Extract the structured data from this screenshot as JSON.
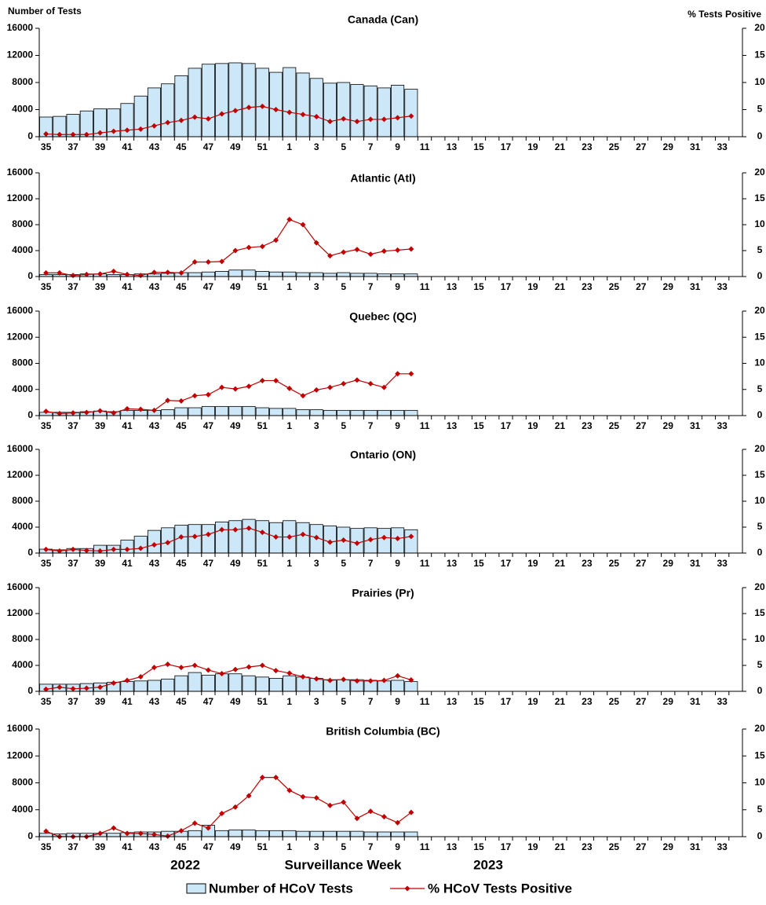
{
  "chart_data": [
    {
      "type": "bar-line",
      "title": "Canada (Can)",
      "y_label": "Number of Tests",
      "y2_label": "% Tests Positive",
      "categories": [
        35,
        null,
        37,
        null,
        39,
        null,
        41,
        null,
        43,
        null,
        45,
        null,
        47,
        null,
        49,
        null,
        51,
        null,
        1,
        null,
        3,
        null,
        5,
        null,
        7,
        null,
        9,
        null,
        11,
        null,
        13,
        null,
        15,
        null,
        17,
        null,
        19,
        null,
        21,
        null,
        23,
        null,
        25,
        null,
        27,
        null,
        29,
        null,
        31,
        null,
        33,
        null
      ],
      "ylim": [
        0,
        16000
      ],
      "yticks": [
        0,
        4000,
        8000,
        12000,
        16000
      ],
      "y2lim": [
        0,
        20
      ],
      "y2ticks": [
        0,
        5,
        10,
        15,
        20
      ],
      "series": [
        {
          "name": "Number of HCoV Tests",
          "color": "#cce8f8",
          "values": [
            2900,
            3000,
            3300,
            3800,
            4100,
            4100,
            4900,
            6000,
            7200,
            7800,
            9000,
            10100,
            10700,
            10800,
            10900,
            10800,
            10100,
            9500,
            10200,
            9400,
            8600,
            7900,
            8000,
            7700,
            7500,
            7200,
            7600,
            7000,
            null,
            null,
            null,
            null,
            null,
            null,
            null,
            null,
            null,
            null,
            null,
            null,
            null,
            null,
            null,
            null,
            null,
            null,
            null,
            null,
            null,
            null,
            null,
            null
          ]
        },
        {
          "name": "% HCoV Tests Positive",
          "color": "#c00000",
          "axis": "y2",
          "values": [
            0.5,
            0.4,
            0.4,
            0.4,
            0.7,
            1.0,
            1.2,
            1.4,
            2.0,
            2.6,
            3.0,
            3.6,
            3.3,
            4.2,
            4.8,
            5.4,
            5.6,
            5.0,
            4.5,
            4.1,
            3.7,
            2.8,
            3.3,
            2.8,
            3.2,
            3.2,
            3.5,
            3.8,
            null,
            null,
            null,
            null,
            null,
            null,
            null,
            null,
            null,
            null,
            null,
            null,
            null,
            null,
            null,
            null,
            null,
            null,
            null,
            null,
            null,
            null,
            null,
            null
          ]
        }
      ]
    },
    {
      "type": "bar-line",
      "title": "Atlantic (Atl)",
      "categories": [
        35,
        null,
        37,
        null,
        39,
        null,
        41,
        null,
        43,
        null,
        45,
        null,
        47,
        null,
        49,
        null,
        51,
        null,
        1,
        null,
        3,
        null,
        5,
        null,
        7,
        null,
        9,
        null,
        11,
        null,
        13,
        null,
        15,
        null,
        17,
        null,
        19,
        null,
        21,
        null,
        23,
        null,
        25,
        null,
        27,
        null,
        29,
        null,
        31,
        null,
        33,
        null
      ],
      "ylim": [
        0,
        16000
      ],
      "yticks": [
        0,
        4000,
        8000,
        12000,
        16000
      ],
      "y2lim": [
        0,
        20
      ],
      "y2ticks": [
        0,
        5,
        10,
        15,
        20
      ],
      "series": [
        {
          "color": "#cce8f8",
          "values": [
            300,
            300,
            300,
            400,
            400,
            300,
            300,
            400,
            400,
            500,
            600,
            600,
            700,
            800,
            1000,
            1000,
            800,
            700,
            700,
            600,
            600,
            500,
            600,
            500,
            500,
            400,
            400,
            400,
            null,
            null,
            null,
            null,
            null,
            null,
            null,
            null,
            null,
            null,
            null,
            null,
            null,
            null,
            null,
            null,
            null,
            null,
            null,
            null,
            null,
            null,
            null,
            null
          ]
        },
        {
          "color": "#c00000",
          "axis": "y2",
          "values": [
            0.7,
            0.7,
            0.2,
            0.4,
            0.5,
            1.0,
            0.4,
            0.2,
            0.8,
            0.8,
            0.7,
            2.8,
            2.8,
            2.9,
            5.0,
            5.6,
            5.8,
            7.0,
            11.0,
            10.0,
            6.5,
            4.0,
            4.7,
            5.2,
            4.3,
            4.9,
            5.1,
            5.3,
            null,
            null,
            null,
            null,
            null,
            null,
            null,
            null,
            null,
            null,
            null,
            null,
            null,
            null,
            null,
            null,
            null,
            null,
            null,
            null,
            null,
            null,
            null,
            null
          ]
        }
      ]
    },
    {
      "type": "bar-line",
      "title": "Quebec (QC)",
      "categories": [
        35,
        null,
        37,
        null,
        39,
        null,
        41,
        null,
        43,
        null,
        45,
        null,
        47,
        null,
        49,
        null,
        51,
        null,
        1,
        null,
        3,
        null,
        5,
        null,
        7,
        null,
        9,
        null,
        11,
        null,
        13,
        null,
        15,
        null,
        17,
        null,
        19,
        null,
        21,
        null,
        23,
        null,
        25,
        null,
        27,
        null,
        29,
        null,
        31,
        null,
        33,
        null
      ],
      "ylim": [
        0,
        16000
      ],
      "yticks": [
        0,
        4000,
        8000,
        12000,
        16000
      ],
      "y2lim": [
        0,
        20
      ],
      "y2ticks": [
        0,
        5,
        10,
        15,
        20
      ],
      "series": [
        {
          "color": "#cce8f8",
          "values": [
            500,
            500,
            500,
            600,
            700,
            600,
            800,
            800,
            800,
            900,
            1200,
            1200,
            1400,
            1400,
            1400,
            1400,
            1200,
            1100,
            1100,
            900,
            900,
            800,
            800,
            800,
            800,
            800,
            800,
            800,
            null,
            null,
            null,
            null,
            null,
            null,
            null,
            null,
            null,
            null,
            null,
            null,
            null,
            null,
            null,
            null,
            null,
            null,
            null,
            null,
            null,
            null,
            null,
            null
          ]
        },
        {
          "color": "#c00000",
          "axis": "y2",
          "values": [
            0.8,
            0.4,
            0.5,
            0.6,
            0.9,
            0.5,
            1.3,
            1.2,
            1.0,
            2.9,
            2.8,
            3.8,
            4.0,
            5.4,
            5.1,
            5.6,
            6.7,
            6.7,
            5.2,
            3.8,
            4.9,
            5.4,
            6.1,
            6.8,
            6.1,
            5.4,
            8.0,
            8.0,
            null,
            null,
            null,
            null,
            null,
            null,
            null,
            null,
            null,
            null,
            null,
            null,
            null,
            null,
            null,
            null,
            null,
            null,
            null,
            null,
            null,
            null,
            null,
            null
          ]
        }
      ]
    },
    {
      "type": "bar-line",
      "title": "Ontario (ON)",
      "categories": [
        35,
        null,
        37,
        null,
        39,
        null,
        41,
        null,
        43,
        null,
        45,
        null,
        47,
        null,
        49,
        null,
        51,
        null,
        1,
        null,
        3,
        null,
        5,
        null,
        7,
        null,
        9,
        null,
        11,
        null,
        13,
        null,
        15,
        null,
        17,
        null,
        19,
        null,
        21,
        null,
        23,
        null,
        25,
        null,
        27,
        null,
        29,
        null,
        31,
        null,
        33,
        null
      ],
      "ylim": [
        0,
        16000
      ],
      "yticks": [
        0,
        4000,
        8000,
        12000,
        16000
      ],
      "y2lim": [
        0,
        20
      ],
      "y2ticks": [
        0,
        5,
        10,
        15,
        20
      ],
      "series": [
        {
          "color": "#cce8f8",
          "values": [
            600,
            500,
            700,
            700,
            1200,
            1200,
            2000,
            2600,
            3500,
            3900,
            4300,
            4400,
            4400,
            4800,
            5000,
            5200,
            5000,
            4700,
            5000,
            4700,
            4400,
            4200,
            4000,
            3800,
            3900,
            3800,
            3900,
            3600,
            null,
            null,
            null,
            null,
            null,
            null,
            null,
            null,
            null,
            null,
            null,
            null,
            null,
            null,
            null,
            null,
            null,
            null,
            null,
            null,
            null,
            null,
            null,
            null
          ]
        },
        {
          "color": "#c00000",
          "axis": "y2",
          "values": [
            0.7,
            0.4,
            0.7,
            0.5,
            0.4,
            0.7,
            0.7,
            0.9,
            1.6,
            2.0,
            3.1,
            3.2,
            3.6,
            4.5,
            4.5,
            4.8,
            4.0,
            3.1,
            3.1,
            3.6,
            3.0,
            2.1,
            2.5,
            1.9,
            2.6,
            3.0,
            2.8,
            3.2,
            null,
            null,
            null,
            null,
            null,
            null,
            null,
            null,
            null,
            null,
            null,
            null,
            null,
            null,
            null,
            null,
            null,
            null,
            null,
            null,
            null,
            null,
            null,
            null
          ]
        }
      ]
    },
    {
      "type": "bar-line",
      "title": "Prairies (Pr)",
      "categories": [
        35,
        null,
        37,
        null,
        39,
        null,
        41,
        null,
        43,
        null,
        45,
        null,
        47,
        null,
        49,
        null,
        51,
        null,
        1,
        null,
        3,
        null,
        5,
        null,
        7,
        null,
        9,
        null,
        11,
        null,
        13,
        null,
        15,
        null,
        17,
        null,
        19,
        null,
        21,
        null,
        23,
        null,
        25,
        null,
        27,
        null,
        29,
        null,
        31,
        null,
        33,
        null
      ],
      "ylim": [
        0,
        16000
      ],
      "yticks": [
        0,
        4000,
        8000,
        12000,
        16000
      ],
      "y2lim": [
        0,
        20
      ],
      "y2ticks": [
        0,
        5,
        10,
        15,
        20
      ],
      "series": [
        {
          "color": "#cce8f8",
          "values": [
            1100,
            1100,
            1100,
            1200,
            1300,
            1400,
            1500,
            1600,
            1700,
            1900,
            2400,
            2900,
            2500,
            2700,
            2700,
            2400,
            2200,
            2000,
            2400,
            2200,
            2000,
            1800,
            1800,
            1800,
            1700,
            1600,
            1700,
            1500,
            null,
            null,
            null,
            null,
            null,
            null,
            null,
            null,
            null,
            null,
            null,
            null,
            null,
            null,
            null,
            null,
            null,
            null,
            null,
            null,
            null,
            null,
            null,
            null
          ]
        },
        {
          "color": "#c00000",
          "axis": "y2",
          "values": [
            0.4,
            0.8,
            0.5,
            0.6,
            0.8,
            1.6,
            2.1,
            2.8,
            4.6,
            5.2,
            4.6,
            5.0,
            4.1,
            3.4,
            4.2,
            4.7,
            5.0,
            4.0,
            3.5,
            2.8,
            2.4,
            2.1,
            2.3,
            2.0,
            2.0,
            2.1,
            3.0,
            2.2,
            null,
            null,
            null,
            null,
            null,
            null,
            null,
            null,
            null,
            null,
            null,
            null,
            null,
            null,
            null,
            null,
            null,
            null,
            null,
            null,
            null,
            null,
            null,
            null
          ]
        }
      ]
    },
    {
      "type": "bar-line",
      "title": "British Columbia (BC)",
      "x_label": "Surveillance Week",
      "annotations": [
        "2022",
        "2023"
      ],
      "categories": [
        35,
        null,
        37,
        null,
        39,
        null,
        41,
        null,
        43,
        null,
        45,
        null,
        47,
        null,
        49,
        null,
        51,
        null,
        1,
        null,
        3,
        null,
        5,
        null,
        7,
        null,
        9,
        null,
        11,
        null,
        13,
        null,
        15,
        null,
        17,
        null,
        19,
        null,
        21,
        null,
        23,
        null,
        25,
        null,
        27,
        null,
        29,
        null,
        31,
        null,
        33,
        null
      ],
      "ylim": [
        0,
        16000
      ],
      "yticks": [
        0,
        4000,
        8000,
        12000,
        16000
      ],
      "y2lim": [
        0,
        20
      ],
      "y2ticks": [
        0,
        5,
        10,
        15,
        20
      ],
      "series": [
        {
          "color": "#cce8f8",
          "values": [
            500,
            400,
            500,
            500,
            500,
            500,
            600,
            700,
            700,
            800,
            800,
            900,
            1700,
            900,
            1000,
            1000,
            900,
            900,
            900,
            800,
            800,
            800,
            800,
            800,
            700,
            700,
            700,
            700,
            null,
            null,
            null,
            null,
            null,
            null,
            null,
            null,
            null,
            null,
            null,
            null,
            null,
            null,
            null,
            null,
            null,
            null,
            null,
            null,
            null,
            null,
            null,
            null
          ]
        },
        {
          "color": "#c00000",
          "axis": "y2",
          "values": [
            1.0,
            0.0,
            0.0,
            0.0,
            0.6,
            1.6,
            0.6,
            0.6,
            0.4,
            0.1,
            1.1,
            2.5,
            1.6,
            4.3,
            5.5,
            7.6,
            11.0,
            11.0,
            8.6,
            7.4,
            7.2,
            5.8,
            6.4,
            3.4,
            4.7,
            3.7,
            2.6,
            4.5,
            null,
            null,
            null,
            null,
            null,
            null,
            null,
            null,
            null,
            null,
            null,
            null,
            null,
            null,
            null,
            null,
            null,
            null,
            null,
            null,
            null,
            null,
            null,
            null
          ]
        }
      ]
    }
  ]
}
